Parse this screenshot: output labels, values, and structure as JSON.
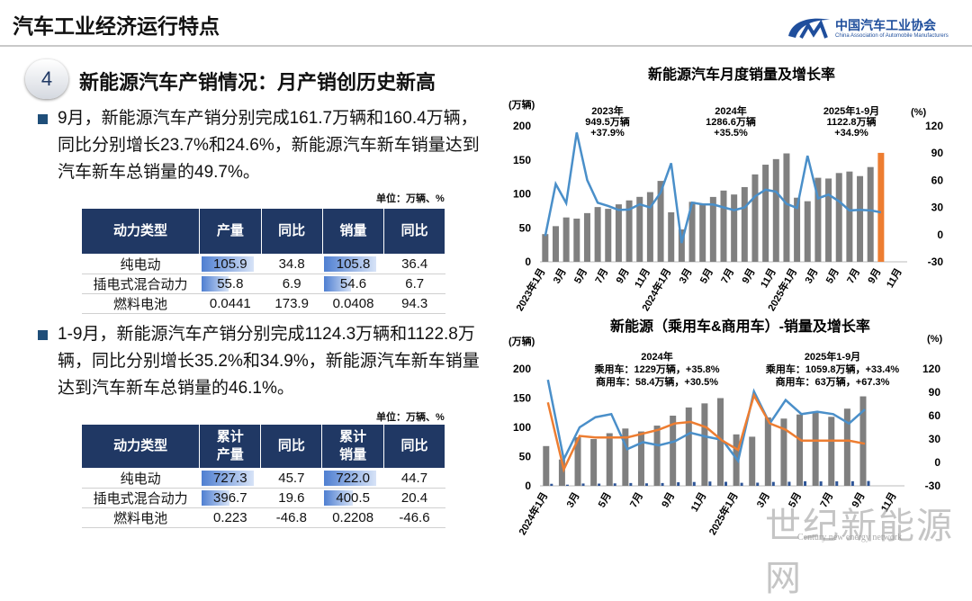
{
  "header": {
    "title": "汽车工业经济运行特点",
    "logo_name": "中国汽车工业协会",
    "logo_english": "China Association of Automobile Manufacturers"
  },
  "section": {
    "number": "4",
    "title": "新能源汽车产销情况：月产销创历史新高"
  },
  "bullets": [
    "9月，新能源汽车产销分别完成161.7万辆和160.4万辆，同比分别增长23.7%和24.6%，新能源汽车新车销量达到汽车新车总销量的49.7%。",
    "1-9月，新能源汽车产销分别完成1124.3万辆和1122.8万辆，同比分别增长35.2%和34.9%，新能源汽车新车销量达到汽车新车总销量的46.1%。"
  ],
  "tables": [
    {
      "unit": "单位：万辆、%",
      "headers": [
        "动力类型",
        "产量",
        "同比",
        "销量",
        "同比"
      ],
      "rows": [
        [
          "纯电动",
          "105.9",
          "34.8",
          "105.8",
          "36.4"
        ],
        [
          "插电式混合动力",
          "55.8",
          "6.9",
          "54.6",
          "6.7"
        ],
        [
          "燃料电池",
          "0.0441",
          "173.9",
          "0.0408",
          "94.3"
        ]
      ]
    },
    {
      "unit": "单位：万辆、%",
      "headers": [
        "动力类型",
        "累计\n产量",
        "同比",
        "累计\n销量",
        "同比"
      ],
      "rows": [
        [
          "纯电动",
          "727.3",
          "45.7",
          "722.0",
          "44.7"
        ],
        [
          "插电式混合动力",
          "396.7",
          "19.6",
          "400.5",
          "20.4"
        ],
        [
          "燃料电池",
          "0.223",
          "-46.8",
          "0.2208",
          "-46.6"
        ]
      ]
    }
  ],
  "chart_data": [
    {
      "type": "bar",
      "title": "新能源汽车月度销量及增长率",
      "y_label": "(万辆)",
      "y2_label": "(%)",
      "categories": [
        "2023年1月",
        null,
        "3月",
        null,
        "5月",
        null,
        "7月",
        null,
        "9月",
        null,
        "11月",
        null,
        "2024年1月",
        null,
        "3月",
        null,
        "5月",
        null,
        "7月",
        null,
        "9月",
        null,
        "11月",
        null,
        "2025年1月",
        null,
        "3月",
        null,
        "5月",
        null,
        "7月",
        null,
        "9月",
        null,
        "11月"
      ],
      "series": [
        {
          "type": "bar",
          "color": "#808080",
          "highlight_color": "#ed7d31",
          "values": [
            40.8,
            52.5,
            65.3,
            63.6,
            71.7,
            80.6,
            78.0,
            84.6,
            90.4,
            95.6,
            102.6,
            119.1,
            72.9,
            47.7,
            88.3,
            85.0,
            95.5,
            104.9,
            99.1,
            110.0,
            128.7,
            143.0,
            151.2,
            159.6,
            94.4,
            89.2,
            123.7,
            122.6,
            130.7,
            132.9,
            126.2,
            139.5,
            160.4,
            null,
            null
          ]
        },
        {
          "type": "line",
          "axis": "y2",
          "color": "#4a8fc9",
          "values": [
            -1.5,
            55.9,
            34.8,
            112.8,
            60.2,
            35.2,
            31.6,
            27.2,
            27.7,
            33.5,
            30.0,
            46.4,
            78.8,
            -9.2,
            35.3,
            33.5,
            33.3,
            30.1,
            27.0,
            30.0,
            42.3,
            49.6,
            47.4,
            34.0,
            29.4,
            87.1,
            40.1,
            44.2,
            36.9,
            26.7,
            27.4,
            26.8,
            24.6,
            null,
            null
          ]
        }
      ],
      "ylim": [
        0,
        200
      ],
      "yticks": [
        0,
        50,
        100,
        150,
        200
      ],
      "y2lim": [
        -30,
        120
      ],
      "y2ticks": [
        -30,
        0,
        30,
        60,
        90,
        120
      ],
      "annotations": [
        [
          "2023年",
          "949.5万辆",
          "+37.9%"
        ],
        [
          "2024年",
          "1286.6万辆",
          "+35.5%"
        ],
        [
          "2025年1-9月",
          "1122.8万辆",
          "+34.9%"
        ]
      ]
    },
    {
      "type": "bar",
      "title": "新能源（乘用车&商用车）-销量及增长率",
      "y_label": "(万辆)",
      "y2_label": "(%)",
      "categories": [
        "2024年1月",
        null,
        "3月",
        null,
        "5月",
        null,
        "7月",
        null,
        "9月",
        null,
        "11月",
        null,
        "2025年1月",
        null,
        "3月",
        null,
        "5月",
        null,
        "7月",
        null,
        "9月",
        null,
        "11月"
      ],
      "series": [
        {
          "type": "bar",
          "color": "#7f7f7f",
          "values": [
            68,
            45,
            83,
            80,
            90,
            98,
            93,
            103,
            120,
            134,
            141,
            150,
            88,
            84,
            117,
            115,
            122,
            125,
            118,
            132,
            153,
            null,
            null
          ]
        },
        {
          "type": "bar",
          "color": "#2e5597",
          "values": [
            3.5,
            2.0,
            4.0,
            3.8,
            4.2,
            4.8,
            4.3,
            4.8,
            6.1,
            6.6,
            7.4,
            6.9,
            5.2,
            5.4,
            6.7,
            7.0,
            7.9,
            7.6,
            7.7,
            7.9,
            8.3,
            null,
            null
          ]
        },
        {
          "type": "line",
          "axis": "y2",
          "color": "#4a8fc9",
          "values": [
            106,
            4,
            45,
            58,
            62,
            17,
            26,
            22,
            27,
            38,
            33,
            29,
            2,
            91,
            50,
            80,
            62,
            65,
            62,
            50,
            68,
            null,
            null
          ]
        },
        {
          "type": "line",
          "axis": "y2",
          "color": "#ed7d31",
          "values": [
            77,
            -9,
            34,
            32,
            32,
            32,
            37,
            42,
            50,
            52,
            45,
            28,
            16,
            86,
            50,
            42,
            28,
            28,
            28,
            28,
            24,
            null,
            null
          ]
        }
      ],
      "ylim": [
        0,
        200
      ],
      "yticks": [
        0,
        50,
        100,
        150,
        200
      ],
      "y2lim": [
        -30,
        120
      ],
      "y2ticks": [
        -30,
        0,
        30,
        60,
        90,
        120
      ],
      "annotations": [
        [
          "2024年",
          "乘用车：1229万辆，+35.8%",
          "商用车：58.4万辆，+30.5%"
        ],
        [
          "2025年1-9月",
          "乘用车：1059.8万辆，+33.4%",
          "商用车：63万辆，+67.3%"
        ]
      ]
    }
  ],
  "watermark": {
    "title": "世纪新能源网",
    "subtitle": "Century new energy network"
  }
}
